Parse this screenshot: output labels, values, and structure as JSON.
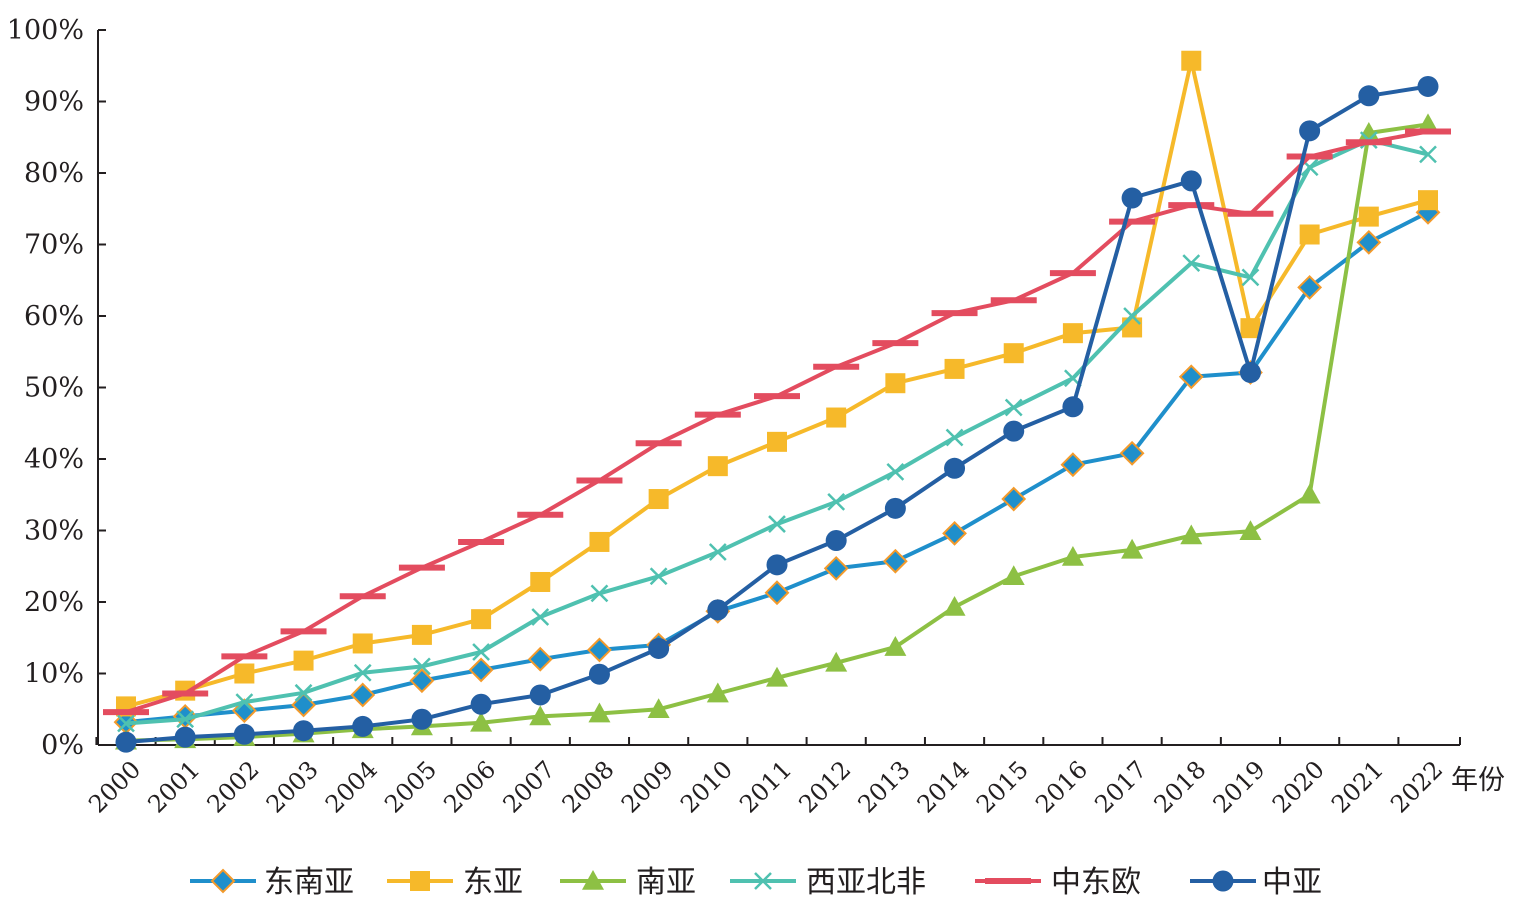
{
  "chart_data": {
    "type": "line",
    "title": "",
    "xlabel": "年份",
    "ylabel": "",
    "ylim": [
      0,
      100
    ],
    "yticks": [
      "0%",
      "10%",
      "20%",
      "30%",
      "40%",
      "50%",
      "60%",
      "70%",
      "80%",
      "90%",
      "100%"
    ],
    "categories": [
      "2000",
      "2001",
      "2002",
      "2003",
      "2004",
      "2005",
      "2006",
      "2007",
      "2008",
      "2009",
      "2010",
      "2011",
      "2012",
      "2013",
      "2014",
      "2015",
      "2016",
      "2017",
      "2018",
      "2019",
      "2020",
      "2021",
      "2022"
    ],
    "legend_position": "bottom",
    "series": [
      {
        "name": "东南亚",
        "color": "#1f8fcb",
        "marker": "diamond",
        "values": [
          3.2,
          4.0,
          4.8,
          5.6,
          7.0,
          9.0,
          10.5,
          12.0,
          13.3,
          14.0,
          18.7,
          21.3,
          24.7,
          25.7,
          29.6,
          34.4,
          39.2,
          40.8,
          51.5,
          52.1,
          64.0,
          70.3,
          74.5
        ]
      },
      {
        "name": "东亚",
        "color": "#f6b92a",
        "marker": "square",
        "values": [
          5.4,
          7.6,
          10.0,
          11.8,
          14.2,
          15.4,
          17.6,
          22.8,
          28.4,
          34.4,
          39.0,
          42.4,
          45.8,
          50.6,
          52.6,
          54.8,
          57.6,
          58.4,
          95.7,
          58.3,
          71.4,
          73.9,
          76.2
        ]
      },
      {
        "name": "南亚",
        "color": "#8dc044",
        "marker": "triangle",
        "values": [
          0.6,
          0.8,
          1.1,
          1.6,
          2.2,
          2.6,
          3.1,
          4.0,
          4.4,
          5.0,
          7.2,
          9.4,
          11.5,
          13.7,
          19.3,
          23.6,
          26.3,
          27.3,
          29.3,
          29.9,
          35.0,
          85.6,
          86.8
        ]
      },
      {
        "name": "西亚北非",
        "color": "#4fc1b0",
        "marker": "x",
        "values": [
          3.0,
          3.6,
          6.0,
          7.3,
          10.1,
          11.0,
          13.0,
          17.9,
          21.2,
          23.6,
          27.0,
          30.9,
          34.0,
          38.2,
          43.0,
          47.2,
          51.3,
          60.0,
          67.4,
          65.4,
          80.8,
          84.6,
          82.6
        ]
      },
      {
        "name": "中东欧",
        "color": "#e34c5f",
        "marker": "dash",
        "values": [
          4.6,
          7.2,
          12.4,
          15.9,
          20.8,
          24.8,
          28.4,
          32.2,
          37.0,
          42.2,
          46.2,
          48.8,
          52.9,
          56.2,
          60.4,
          62.2,
          66.0,
          73.2,
          75.5,
          74.3,
          82.3,
          84.3,
          85.8
        ]
      },
      {
        "name": "中亚",
        "color": "#245fa3",
        "marker": "circle",
        "values": [
          0.4,
          1.1,
          1.5,
          2.0,
          2.6,
          3.6,
          5.7,
          7.0,
          9.9,
          13.5,
          18.9,
          25.2,
          28.6,
          33.1,
          38.7,
          43.9,
          47.3,
          76.5,
          78.9,
          52.1,
          85.9,
          90.8,
          92.1
        ]
      }
    ]
  }
}
